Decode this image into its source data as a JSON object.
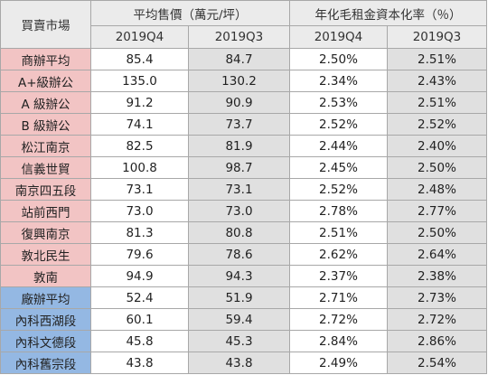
{
  "header": {
    "market_label": "買賣市場",
    "price_group": "平均售價（萬元/坪）",
    "yield_group": "年化毛租金資本化率（％）",
    "periods": [
      "2019Q4",
      "2019Q3",
      "2019Q4",
      "2019Q3"
    ]
  },
  "colors": {
    "office_market": "#f2c4c4",
    "factory_market": "#94b8e3",
    "current_period_cell": "#ffffff",
    "previous_period_cell": "#e0e0e0",
    "header": "#ebebeb"
  },
  "rows": [
    {
      "market": "商辦平均",
      "category": "office",
      "price_q4": "85.4",
      "price_q3": "84.7",
      "yield_q4": "2.50%",
      "yield_q3": "2.51%"
    },
    {
      "market": "A+級辦公",
      "category": "office",
      "price_q4": "135.0",
      "price_q3": "130.2",
      "yield_q4": "2.34%",
      "yield_q3": "2.43%"
    },
    {
      "market": "A 級辦公",
      "category": "office",
      "price_q4": "91.2",
      "price_q3": "90.9",
      "yield_q4": "2.53%",
      "yield_q3": "2.51%"
    },
    {
      "market": "B 級辦公",
      "category": "office",
      "price_q4": "74.1",
      "price_q3": "73.7",
      "yield_q4": "2.52%",
      "yield_q3": "2.52%"
    },
    {
      "market": "松江南京",
      "category": "office",
      "price_q4": "82.5",
      "price_q3": "81.9",
      "yield_q4": "2.44%",
      "yield_q3": "2.40%"
    },
    {
      "market": "信義世貿",
      "category": "office",
      "price_q4": "100.8",
      "price_q3": "98.7",
      "yield_q4": "2.45%",
      "yield_q3": "2.50%"
    },
    {
      "market": "南京四五段",
      "category": "office",
      "price_q4": "73.1",
      "price_q3": "73.1",
      "yield_q4": "2.52%",
      "yield_q3": "2.48%"
    },
    {
      "market": "站前西門",
      "category": "office",
      "price_q4": "73.0",
      "price_q3": "73.0",
      "yield_q4": "2.78%",
      "yield_q3": "2.77%"
    },
    {
      "market": "復興南京",
      "category": "office",
      "price_q4": "81.3",
      "price_q3": "80.8",
      "yield_q4": "2.51%",
      "yield_q3": "2.50%"
    },
    {
      "market": "敦北民生",
      "category": "office",
      "price_q4": "79.6",
      "price_q3": "78.6",
      "yield_q4": "2.62%",
      "yield_q3": "2.64%"
    },
    {
      "market": "敦南",
      "category": "office",
      "price_q4": "94.9",
      "price_q3": "94.3",
      "yield_q4": "2.37%",
      "yield_q3": "2.38%"
    },
    {
      "market": "廠辦平均",
      "category": "factory",
      "price_q4": "52.4",
      "price_q3": "51.9",
      "yield_q4": "2.71%",
      "yield_q3": "2.73%"
    },
    {
      "market": "內科西湖段",
      "category": "factory",
      "price_q4": "60.1",
      "price_q3": "59.4",
      "yield_q4": "2.72%",
      "yield_q3": "2.72%"
    },
    {
      "market": "內科文德段",
      "category": "factory",
      "price_q4": "45.8",
      "price_q3": "45.3",
      "yield_q4": "2.84%",
      "yield_q3": "2.86%"
    },
    {
      "market": "內科舊宗段",
      "category": "factory",
      "price_q4": "43.8",
      "price_q3": "43.8",
      "yield_q4": "2.49%",
      "yield_q3": "2.54%"
    }
  ]
}
